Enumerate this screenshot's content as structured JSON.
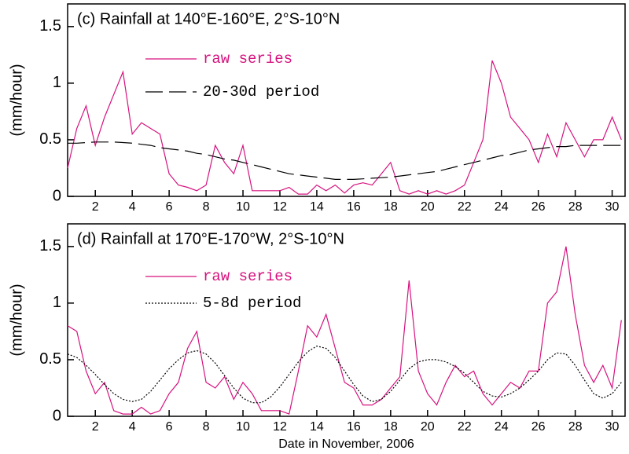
{
  "chart_data": [
    {
      "type": "line",
      "title": "(c) Rainfall at 140°E-160°E, 2°S-10°N",
      "ylabel": "(mm/hour)",
      "x": [
        0.5,
        1,
        1.5,
        2,
        2.5,
        3,
        3.5,
        4,
        4.5,
        5,
        5.5,
        6,
        6.5,
        7,
        7.5,
        8,
        8.5,
        9,
        9.5,
        10,
        10.5,
        11,
        11.5,
        12,
        12.5,
        13,
        13.5,
        14,
        14.5,
        15,
        15.5,
        16,
        16.5,
        17,
        17.5,
        18,
        18.5,
        19,
        19.5,
        20,
        20.5,
        21,
        21.5,
        22,
        22.5,
        23,
        23.5,
        24,
        24.5,
        25,
        25.5,
        26,
        26.5,
        27,
        27.5,
        28,
        28.5,
        29,
        29.5,
        30,
        30.5
      ],
      "series": [
        {
          "name": "raw series",
          "color": "#d6127e",
          "line_style": "solid",
          "values": [
            0.25,
            0.6,
            0.8,
            0.45,
            0.7,
            0.9,
            1.1,
            0.55,
            0.65,
            0.6,
            0.55,
            0.2,
            0.1,
            0.08,
            0.05,
            0.1,
            0.45,
            0.3,
            0.2,
            0.45,
            0.05,
            0.05,
            0.05,
            0.05,
            0.08,
            0.02,
            0.02,
            0.1,
            0.05,
            0.1,
            0.03,
            0.1,
            0.12,
            0.1,
            0.2,
            0.3,
            0.05,
            0.02,
            0.05,
            0.02,
            0.05,
            0.02,
            0.05,
            0.1,
            0.3,
            0.5,
            1.2,
            1.0,
            0.7,
            0.6,
            0.5,
            0.3,
            0.55,
            0.35,
            0.65,
            0.5,
            0.35,
            0.5,
            0.5,
            0.7,
            0.5
          ]
        },
        {
          "name": "20-30d period",
          "color": "#000000",
          "line_style": "dashed",
          "values": [
            0.47,
            0.47,
            0.475,
            0.48,
            0.48,
            0.48,
            0.475,
            0.47,
            0.46,
            0.45,
            0.43,
            0.42,
            0.41,
            0.4,
            0.38,
            0.37,
            0.35,
            0.33,
            0.32,
            0.3,
            0.28,
            0.26,
            0.24,
            0.22,
            0.2,
            0.19,
            0.18,
            0.17,
            0.16,
            0.15,
            0.15,
            0.15,
            0.155,
            0.16,
            0.165,
            0.17,
            0.18,
            0.19,
            0.2,
            0.21,
            0.22,
            0.24,
            0.26,
            0.28,
            0.3,
            0.32,
            0.34,
            0.36,
            0.37,
            0.39,
            0.41,
            0.42,
            0.43,
            0.44,
            0.44,
            0.45,
            0.45,
            0.45,
            0.45,
            0.45,
            0.45
          ]
        }
      ],
      "xlim": [
        0.5,
        30.7
      ],
      "xticks": [
        2,
        4,
        6,
        8,
        10,
        12,
        14,
        16,
        18,
        20,
        22,
        24,
        26,
        28,
        30
      ],
      "ylim": [
        0,
        1.7
      ],
      "yticks": [
        0,
        0.5,
        1,
        1.5
      ]
    },
    {
      "type": "line",
      "title": "(d) Rainfall at 170°E-170°W, 2°S-10°N",
      "ylabel": "(mm/hour)",
      "xlabel": "Date in November,  2006",
      "x": [
        0.5,
        1,
        1.5,
        2,
        2.5,
        3,
        3.5,
        4,
        4.5,
        5,
        5.5,
        6,
        6.5,
        7,
        7.5,
        8,
        8.5,
        9,
        9.5,
        10,
        10.5,
        11,
        11.5,
        12,
        12.5,
        13,
        13.5,
        14,
        14.5,
        15,
        15.5,
        16,
        16.5,
        17,
        17.5,
        18,
        18.5,
        19,
        19.5,
        20,
        20.5,
        21,
        21.5,
        22,
        22.5,
        23,
        23.5,
        24,
        24.5,
        25,
        25.5,
        26,
        26.5,
        27,
        27.5,
        28,
        28.5,
        29,
        29.5,
        30,
        30.5
      ],
      "series": [
        {
          "name": "raw series",
          "color": "#d6127e",
          "line_style": "solid",
          "values": [
            0.8,
            0.75,
            0.4,
            0.2,
            0.3,
            0.05,
            0.02,
            0.02,
            0.08,
            0.02,
            0.05,
            0.2,
            0.3,
            0.6,
            0.75,
            0.3,
            0.25,
            0.35,
            0.15,
            0.3,
            0.2,
            0.05,
            0.05,
            0.05,
            0.02,
            0.4,
            0.8,
            0.7,
            0.9,
            0.6,
            0.3,
            0.25,
            0.1,
            0.1,
            0.15,
            0.25,
            0.35,
            1.2,
            0.4,
            0.2,
            0.1,
            0.3,
            0.45,
            0.35,
            0.4,
            0.2,
            0.1,
            0.2,
            0.3,
            0.25,
            0.4,
            0.4,
            1.0,
            1.1,
            1.5,
            0.9,
            0.45,
            0.3,
            0.45,
            0.25,
            0.85
          ]
        },
        {
          "name": "5-8d period",
          "color": "#000000",
          "line_style": "dotted",
          "values": [
            0.55,
            0.52,
            0.45,
            0.37,
            0.28,
            0.2,
            0.15,
            0.13,
            0.15,
            0.22,
            0.32,
            0.42,
            0.5,
            0.56,
            0.58,
            0.55,
            0.47,
            0.36,
            0.25,
            0.16,
            0.12,
            0.12,
            0.17,
            0.26,
            0.37,
            0.48,
            0.57,
            0.62,
            0.6,
            0.52,
            0.4,
            0.28,
            0.18,
            0.13,
            0.15,
            0.22,
            0.32,
            0.42,
            0.48,
            0.5,
            0.5,
            0.48,
            0.44,
            0.38,
            0.3,
            0.22,
            0.18,
            0.17,
            0.2,
            0.25,
            0.32,
            0.4,
            0.5,
            0.56,
            0.55,
            0.45,
            0.32,
            0.2,
            0.16,
            0.2,
            0.3
          ]
        }
      ],
      "xlim": [
        0.5,
        30.7
      ],
      "xticks": [
        2,
        4,
        6,
        8,
        10,
        12,
        14,
        16,
        18,
        20,
        22,
        24,
        26,
        28,
        30
      ],
      "ylim": [
        0,
        1.7
      ],
      "yticks": [
        0,
        0.5,
        1,
        1.5
      ]
    }
  ]
}
